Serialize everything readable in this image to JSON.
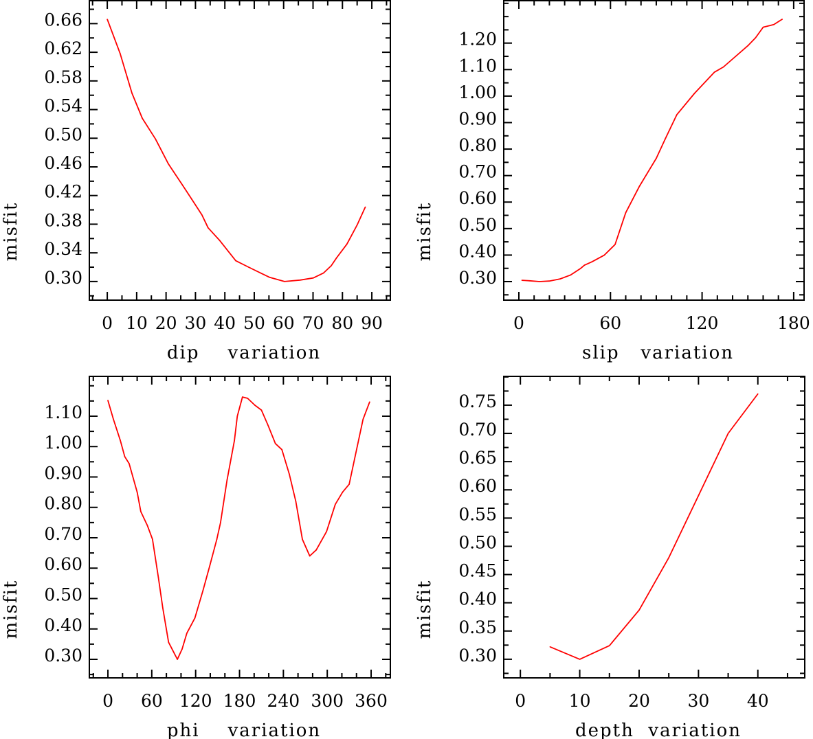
{
  "chart_data": [
    {
      "type": "line",
      "title": "",
      "xlabel": "dip    variation",
      "ylabel": "misfit",
      "xlim": [
        -6.1,
        96.3
      ],
      "ylim": [
        0.274,
        0.692
      ],
      "xticks": [
        0,
        10,
        20,
        30,
        40,
        50,
        60,
        70,
        80,
        90
      ],
      "xtick_labels": [
        "0",
        "10",
        "20",
        "30",
        "40",
        "50",
        "60",
        "70",
        "80",
        "90"
      ],
      "xminor_step": 5,
      "yticks": [
        0.3,
        0.34,
        0.38,
        0.42,
        0.46,
        0.5,
        0.54,
        0.58,
        0.62,
        0.66
      ],
      "ytick_labels": [
        "0.30",
        "0.34",
        "0.38",
        "0.42",
        "0.46",
        "0.50",
        "0.54",
        "0.58",
        "0.62",
        "0.66"
      ],
      "yminor_step": 0.02,
      "grid": false,
      "color": "#ff0000",
      "x": [
        0,
        4.4,
        8.4,
        11.9,
        16.4,
        20.8,
        25.2,
        28.7,
        32.2,
        34.3,
        38.3,
        43.7,
        48.1,
        55.1,
        60.3,
        65.6,
        70.1,
        73.6,
        76.2,
        78,
        81.5,
        85,
        87.8
      ],
      "y": [
        0.666,
        0.618,
        0.563,
        0.528,
        0.499,
        0.464,
        0.437,
        0.415,
        0.393,
        0.375,
        0.357,
        0.329,
        0.32,
        0.306,
        0.3,
        0.302,
        0.305,
        0.312,
        0.322,
        0.333,
        0.352,
        0.379,
        0.404
      ]
    },
    {
      "type": "line",
      "title": "",
      "xlabel": "slip   variation",
      "ylabel": "misfit",
      "xlim": [
        -9.9,
        186.8
      ],
      "ylim": [
        0.23,
        1.36
      ],
      "xticks": [
        0,
        60,
        120,
        180
      ],
      "xtick_labels": [
        "0",
        "60",
        "120",
        "180"
      ],
      "xminor_step": 10,
      "yticks": [
        0.3,
        0.4,
        0.5,
        0.6,
        0.7,
        0.8,
        0.9,
        1.0,
        1.1,
        1.2
      ],
      "ytick_labels": [
        "0.30",
        "0.40",
        "0.50",
        "0.60",
        "0.70",
        "0.80",
        "0.90",
        "1.00",
        "1.10",
        "1.20"
      ],
      "yminor_step": 0.05,
      "grid": false,
      "color": "#ff0000",
      "x": [
        2,
        7,
        13.5,
        20,
        27,
        34,
        40.5,
        43,
        48,
        56,
        63,
        70,
        79,
        90,
        96,
        103.5,
        115,
        128,
        134,
        142,
        150,
        155,
        160,
        167,
        172.5
      ],
      "y": [
        0.305,
        0.303,
        0.3,
        0.302,
        0.31,
        0.325,
        0.35,
        0.362,
        0.375,
        0.4,
        0.44,
        0.56,
        0.66,
        0.765,
        0.84,
        0.93,
        1.01,
        1.09,
        1.11,
        1.15,
        1.19,
        1.22,
        1.26,
        1.27,
        1.29
      ]
    },
    {
      "type": "line",
      "title": "",
      "xlabel": "phi    variation",
      "ylabel": "misfit",
      "xlim": [
        -25.4,
        386.3
      ],
      "ylim": [
        0.239,
        1.231
      ],
      "xticks": [
        0,
        60,
        120,
        180,
        240,
        300,
        360
      ],
      "xtick_labels": [
        "0",
        "60",
        "120",
        "180",
        "240",
        "300",
        "360"
      ],
      "xminor_step": 20,
      "yticks": [
        0.3,
        0.4,
        0.5,
        0.6,
        0.7,
        0.8,
        0.9,
        1.0,
        1.1
      ],
      "ytick_labels": [
        "0.30",
        "0.40",
        "0.50",
        "0.60",
        "0.70",
        "0.80",
        "0.90",
        "1.00",
        "1.10"
      ],
      "yminor_step": 0.05,
      "grid": false,
      "color": "#ff0000",
      "x": [
        0,
        7.5,
        17,
        23,
        29,
        40,
        45,
        54,
        61,
        69,
        75,
        83,
        95,
        101.5,
        108,
        119,
        130,
        139,
        149,
        154,
        163,
        173,
        177,
        184,
        191,
        201,
        210,
        219,
        229,
        238,
        248,
        257,
        266,
        276,
        285,
        299,
        311,
        321,
        330,
        341,
        349,
        358
      ],
      "y": [
        1.152,
        1.09,
        1.02,
        0.967,
        0.944,
        0.85,
        0.786,
        0.74,
        0.695,
        0.57,
        0.47,
        0.356,
        0.3,
        0.334,
        0.386,
        0.436,
        0.526,
        0.605,
        0.695,
        0.75,
        0.89,
        1.02,
        1.1,
        1.163,
        1.159,
        1.136,
        1.12,
        1.07,
        1.01,
        0.99,
        0.91,
        0.82,
        0.695,
        0.64,
        0.66,
        0.72,
        0.81,
        0.85,
        0.876,
        1.0,
        1.09,
        1.147
      ]
    },
    {
      "type": "line",
      "title": "",
      "xlabel": "depth  variation",
      "ylabel": "misfit",
      "xlim": [
        -2.8,
        47.9
      ],
      "ylim": [
        0.267,
        0.801
      ],
      "xticks": [
        0,
        10,
        20,
        30,
        40
      ],
      "xtick_labels": [
        "0",
        "10",
        "20",
        "30",
        "40"
      ],
      "xminor_step": 5,
      "yticks": [
        0.3,
        0.35,
        0.4,
        0.45,
        0.5,
        0.55,
        0.6,
        0.65,
        0.7,
        0.75
      ],
      "ytick_labels": [
        "0.30",
        "0.35",
        "0.40",
        "0.45",
        "0.50",
        "0.55",
        "0.60",
        "0.65",
        "0.70",
        "0.75"
      ],
      "yminor_step": 0.025,
      "grid": false,
      "color": "#ff0000",
      "x": [
        5,
        10,
        15,
        20,
        25,
        30,
        35,
        40
      ],
      "y": [
        0.322,
        0.3,
        0.324,
        0.387,
        0.48,
        0.59,
        0.7,
        0.77
      ]
    }
  ]
}
